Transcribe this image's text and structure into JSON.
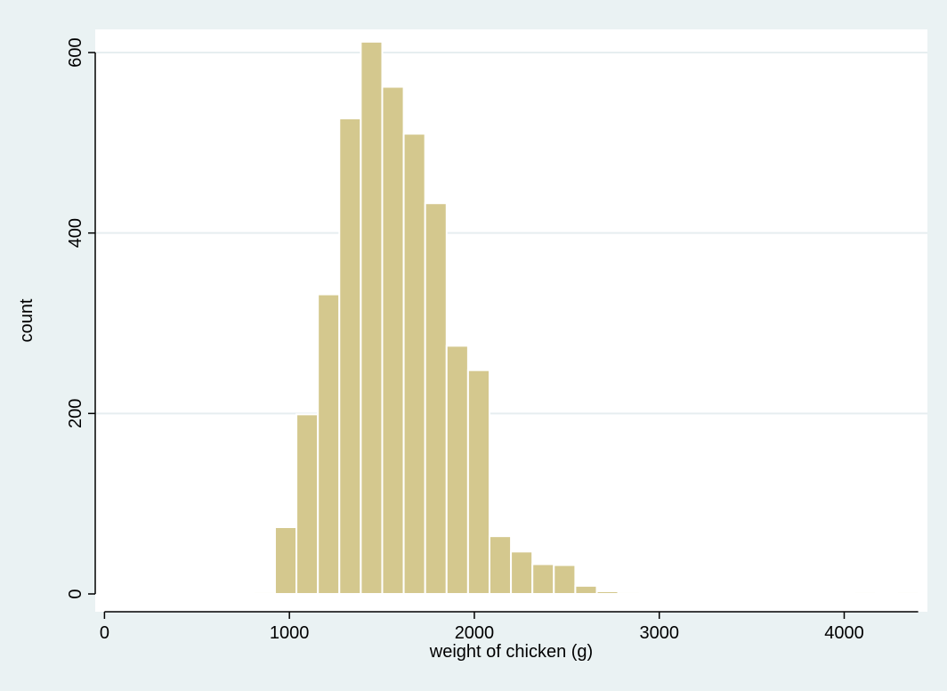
{
  "chart_data": {
    "type": "bar",
    "xlabel": "weight of chicken (g)",
    "ylabel": "count",
    "xlim": [
      -50,
      4450
    ],
    "ylim": [
      0,
      630
    ],
    "xticks": [
      0,
      1000,
      2000,
      3000,
      4000
    ],
    "yticks": [
      0,
      200,
      400,
      600
    ],
    "grid": true,
    "bin_width": 116,
    "bins": [
      {
        "x0": 339,
        "x1": 455,
        "value": 1
      },
      {
        "x0": 806,
        "x1": 922,
        "value": 2
      },
      {
        "x0": 922,
        "x1": 1038,
        "value": 74
      },
      {
        "x0": 1038,
        "x1": 1154,
        "value": 199
      },
      {
        "x0": 1154,
        "x1": 1270,
        "value": 332
      },
      {
        "x0": 1270,
        "x1": 1386,
        "value": 527
      },
      {
        "x0": 1386,
        "x1": 1502,
        "value": 612
      },
      {
        "x0": 1502,
        "x1": 1618,
        "value": 562
      },
      {
        "x0": 1618,
        "x1": 1734,
        "value": 510
      },
      {
        "x0": 1734,
        "x1": 1850,
        "value": 433
      },
      {
        "x0": 1850,
        "x1": 1966,
        "value": 275
      },
      {
        "x0": 1966,
        "x1": 2082,
        "value": 248
      },
      {
        "x0": 2082,
        "x1": 2198,
        "value": 64
      },
      {
        "x0": 2198,
        "x1": 2314,
        "value": 47
      },
      {
        "x0": 2314,
        "x1": 2430,
        "value": 33
      },
      {
        "x0": 2430,
        "x1": 2546,
        "value": 32
      },
      {
        "x0": 2546,
        "x1": 2662,
        "value": 9
      },
      {
        "x0": 2662,
        "x1": 2778,
        "value": 3
      },
      {
        "x0": 2778,
        "x1": 2894,
        "value": 2
      },
      {
        "x0": 2894,
        "x1": 3010,
        "value": 1
      },
      {
        "x0": 4054,
        "x1": 4170,
        "value": 2
      },
      {
        "x0": 4286,
        "x1": 4402,
        "value": 2
      }
    ],
    "colors": {
      "outer_background": "#eaf2f3",
      "plot_background": "#ffffff",
      "bar_fill": "#d4c88e",
      "bar_stroke": "#ffffff",
      "grid": "#e6eef0",
      "axis": "#000000"
    }
  }
}
